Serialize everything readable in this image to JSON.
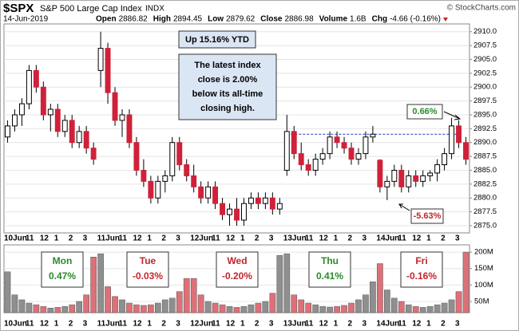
{
  "chart_data": {
    "type": "candlestick",
    "title": "$SPX",
    "subtitle": "S&P 500 Large Cap Index",
    "exchange": "INDX",
    "date": "14-Jun-2019",
    "quote": [
      {
        "label": "Open",
        "value": 2886.82
      },
      {
        "label": "High",
        "value": 2894.45
      },
      {
        "label": "Low",
        "value": 2879.62
      },
      {
        "label": "Close",
        "value": 2886.98
      },
      {
        "label": "Volume",
        "value": "1.6B"
      },
      {
        "label": "Chg",
        "value": "-4.66 (-0.16%)"
      }
    ],
    "credit": "© StockCharts.com",
    "categories": [
      "10Jun",
      null,
      null,
      "11",
      null,
      "12",
      null,
      "1",
      null,
      "2",
      null,
      "3",
      null,
      "11Jun",
      null,
      null,
      "11",
      null,
      "12",
      null,
      "1",
      null,
      "2",
      null,
      "3",
      null,
      "12Jun",
      null,
      null,
      "11",
      null,
      "12",
      null,
      "1",
      null,
      "2",
      null,
      "3",
      null,
      "13Jun",
      null,
      null,
      "11",
      null,
      "12",
      null,
      "1",
      null,
      "2",
      null,
      "3",
      null,
      "14Jun",
      null,
      null,
      "11",
      null,
      "12",
      null,
      "1",
      null,
      "2",
      null,
      "3",
      null
    ],
    "open": [
      2891,
      2893,
      2895,
      2897,
      2903,
      2900,
      2895,
      2896,
      2892,
      2894,
      2890,
      2892,
      2889,
      2903,
      2907,
      2899,
      2894,
      2895,
      2890,
      2885,
      2883,
      2880,
      2883,
      2884,
      2890,
      2886,
      2884,
      2882,
      2880,
      2882,
      2879,
      2877,
      2878,
      2876,
      2879,
      2880,
      2879,
      2880,
      2878,
      2885,
      2892,
      2888,
      2886,
      2885,
      2887,
      2888,
      2891,
      2890,
      2889,
      2887,
      2888,
      2891,
      2886.82,
      2882,
      2883,
      2885,
      2882,
      2884,
      2883,
      2884,
      2884.5,
      2886,
      2888,
      2893,
      2890
    ],
    "high": [
      2894,
      2896,
      2898,
      2904,
      2904,
      2901,
      2897,
      2897,
      2895,
      2895,
      2893,
      2893,
      2890,
      2910,
      2908,
      2900,
      2896,
      2896,
      2891,
      2887,
      2884,
      2884,
      2885,
      2891,
      2891,
      2887,
      2886,
      2883,
      2883,
      2883,
      2880,
      2879,
      2880,
      2880,
      2881,
      2881,
      2881,
      2881,
      2880,
      2895,
      2893,
      2890,
      2887,
      2888,
      2889,
      2892,
      2892,
      2891,
      2890,
      2889,
      2892,
      2893,
      2887,
      2884,
      2886,
      2886,
      2885,
      2885,
      2885,
      2885,
      2887,
      2889,
      2894.45,
      2894,
      2891
    ],
    "low": [
      2890,
      2892,
      2893,
      2896,
      2899,
      2894,
      2892,
      2891,
      2891,
      2889,
      2889,
      2888,
      2886,
      2900,
      2897,
      2893,
      2891,
      2889,
      2884,
      2882,
      2879,
      2879,
      2881,
      2883,
      2885,
      2883,
      2881,
      2879,
      2879,
      2878,
      2876,
      2875,
      2875,
      2875,
      2878,
      2878,
      2878,
      2877,
      2877,
      2884,
      2887,
      2885,
      2884,
      2884,
      2886,
      2887,
      2889,
      2888,
      2886,
      2886,
      2887,
      2890,
      2881,
      2879.62,
      2882,
      2881,
      2881,
      2882,
      2882,
      2883,
      2883,
      2885,
      2887,
      2889,
      2886
    ],
    "close": [
      2893,
      2895,
      2897,
      2903,
      2900,
      2895,
      2896,
      2892,
      2894,
      2890,
      2892,
      2889,
      2887,
      2907,
      2899,
      2894,
      2895,
      2890,
      2885,
      2883,
      2880,
      2883,
      2884,
      2890,
      2886,
      2884,
      2882,
      2880,
      2882,
      2879,
      2877,
      2878,
      2876,
      2879,
      2880,
      2879,
      2880,
      2878,
      2879,
      2892,
      2888,
      2886,
      2885,
      2887,
      2888,
      2891,
      2890,
      2889,
      2887,
      2888,
      2891,
      2891.5,
      2882,
      2883,
      2885,
      2882,
      2884,
      2883,
      2884,
      2884.5,
      2886,
      2888,
      2893,
      2890,
      2886.98
    ],
    "volume": [
      140,
      70,
      55,
      45,
      40,
      35,
      30,
      32,
      35,
      40,
      50,
      70,
      185,
      195,
      95,
      65,
      55,
      45,
      40,
      38,
      40,
      45,
      55,
      60,
      80,
      120,
      120,
      70,
      50,
      45,
      40,
      35,
      32,
      35,
      40,
      45,
      50,
      75,
      190,
      195,
      70,
      55,
      45,
      40,
      35,
      33,
      35,
      38,
      45,
      55,
      70,
      110,
      165,
      85,
      60,
      50,
      40,
      35,
      32,
      35,
      40,
      45,
      55,
      80,
      200
    ],
    "up_color": "#ffffff",
    "down_color": "#d0213a",
    "volume_up_color": "#8f8f8f",
    "volume_down_color": "#dd7078",
    "reference_line": 2891.5,
    "ylim": [
      2873.7,
      2911.4
    ],
    "yticks": [
      {
        "value": 2875,
        "label": "2875.0"
      },
      {
        "value": 2877.5,
        "label": "2877.5"
      },
      {
        "value": 2880,
        "label": "2880.0"
      },
      {
        "value": 2882.5,
        "label": "2882.5"
      },
      {
        "value": 2885,
        "label": "2885.0"
      },
      {
        "value": 2887.5,
        "label": "2887.5"
      },
      {
        "value": 2890,
        "label": "2890.0"
      },
      {
        "value": 2892.5,
        "label": "2892.5"
      },
      {
        "value": 2895,
        "label": "2895.0"
      },
      {
        "value": 2897.5,
        "label": "2897.5"
      },
      {
        "value": 2900,
        "label": "2900.0"
      },
      {
        "value": 2902.5,
        "label": "2902.5"
      },
      {
        "value": 2905,
        "label": "2905.0"
      },
      {
        "value": 2907.5,
        "label": "2907.5"
      },
      {
        "value": 2910,
        "label": "2910.0"
      }
    ],
    "y2lim": [
      16,
      222
    ],
    "y2ticks": [
      {
        "value": 50,
        "label": "50M"
      },
      {
        "value": 100,
        "label": "100M"
      },
      {
        "value": 150,
        "label": "150M"
      },
      {
        "value": 200,
        "label": "200M"
      }
    ],
    "grid": true,
    "annotations": {
      "ytd": "Up 15.16% YTD",
      "note": [
        "The latest index",
        "close is 2.00%",
        "below its all-time",
        "closing high."
      ],
      "high_gap": "0.66%",
      "low_gap": "-5.63%"
    },
    "day_labels": [
      {
        "day": "Mon",
        "change": "0.47%",
        "color": "#2a8a2a"
      },
      {
        "day": "Tue",
        "change": "-0.03%",
        "color": "#c0262c"
      },
      {
        "day": "Wed",
        "change": "-0.20%",
        "color": "#c0262c"
      },
      {
        "day": "Thu",
        "change": "0.41%",
        "color": "#2a8a2a"
      },
      {
        "day": "Fri",
        "change": "-0.16%",
        "color": "#c0262c"
      }
    ]
  }
}
